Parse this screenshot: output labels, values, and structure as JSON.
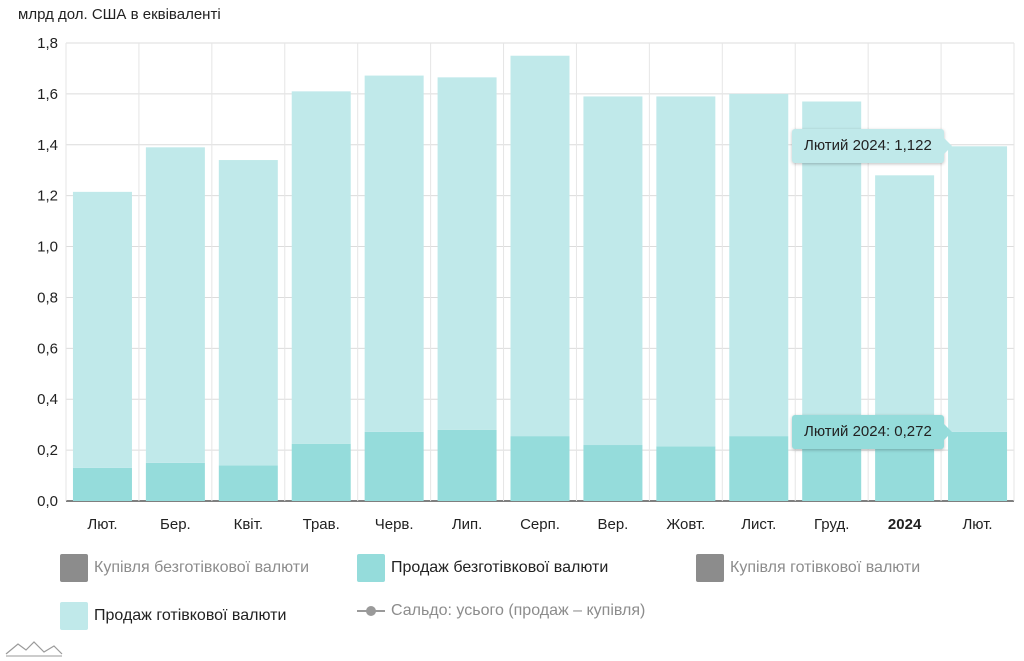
{
  "chart_data": {
    "type": "bar",
    "stacked": true,
    "ylabel": "млрд дол. США в еквіваленті",
    "ylim": [
      0,
      1.8
    ],
    "yticks": [
      "0,0",
      "0,2",
      "0,4",
      "0,6",
      "0,8",
      "1,0",
      "1,2",
      "1,4",
      "1,6",
      "1,8"
    ],
    "grid": true,
    "categories": [
      "Лют.",
      "Бер.",
      "Квіт.",
      "Трав.",
      "Черв.",
      "Лип.",
      "Серп.",
      "Вер.",
      "Жовт.",
      "Лист.",
      "Груд.",
      "2024",
      "Лют."
    ],
    "bold_categories": [
      "2024"
    ],
    "series": [
      {
        "name": "Продаж безготівкової валюти",
        "color": "#95dcdb",
        "values": [
          0.13,
          0.15,
          0.14,
          0.225,
          0.272,
          0.28,
          0.255,
          0.22,
          0.215,
          0.255,
          0.24,
          0.23,
          0.272
        ]
      },
      {
        "name": "Продаж готівкової валюти",
        "color": "#c0e9ea",
        "values": [
          1.085,
          1.24,
          1.2,
          1.385,
          1.4,
          1.385,
          1.495,
          1.37,
          1.375,
          1.345,
          1.33,
          1.05,
          1.122
        ]
      }
    ],
    "legend": {
      "placement": "bottom",
      "items": [
        {
          "label": "Купівля безготівкової валюти",
          "color": "#8c8c8c",
          "hidden": true,
          "kind": "box"
        },
        {
          "label": "Продаж безготівкової валюти",
          "color": "#95dcdb",
          "hidden": false,
          "kind": "box"
        },
        {
          "label": "Купівля готівкової валюти",
          "color": "#8c8c8c",
          "hidden": true,
          "kind": "box"
        },
        {
          "label": "Продаж готівкової валюти",
          "color": "#c0e9ea",
          "hidden": false,
          "kind": "box"
        },
        {
          "label": "Сальдо: усього (продаж – купівля)",
          "color": "#9a9a9a",
          "hidden": true,
          "kind": "line"
        }
      ]
    },
    "tooltips": [
      {
        "text": "Лютий 2024: 1,122",
        "series": 1,
        "index": 12,
        "bg": "#c0e9ea"
      },
      {
        "text": "Лютий 2024: 0,272",
        "series": 0,
        "index": 12,
        "bg": "#95dcdb"
      }
    ]
  }
}
